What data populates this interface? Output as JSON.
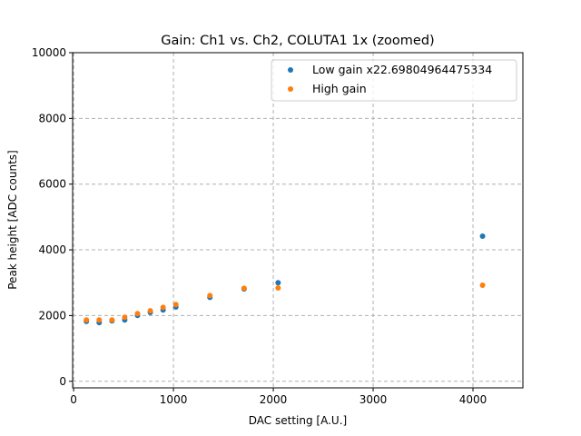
{
  "chart_data": {
    "type": "scatter",
    "title": "Gain: Ch1 vs. Ch2, COLUTA1 1x (zoomed)",
    "xlabel": "DAC setting [A.U.]",
    "ylabel": "Peak height [ADC counts]",
    "xlim": [
      -10,
      4500
    ],
    "ylim": [
      -200,
      10000
    ],
    "xticks": [
      0,
      1000,
      2000,
      3000,
      4000
    ],
    "yticks": [
      0,
      2000,
      4000,
      6000,
      8000,
      10000
    ],
    "grid": true,
    "legend_position": "top-right",
    "series": [
      {
        "name": "Low gain x22.69804964475334",
        "color": "#1f77b4",
        "x": [
          128,
          256,
          384,
          512,
          640,
          768,
          896,
          1024,
          1365,
          1707,
          2048,
          4096
        ],
        "y": [
          1820,
          1785,
          1840,
          1865,
          2005,
          2095,
          2170,
          2260,
          2555,
          2810,
          3000,
          4415
        ]
      },
      {
        "name": "High gain",
        "color": "#ff7f0e",
        "x": [
          128,
          256,
          384,
          512,
          640,
          768,
          896,
          1024,
          1365,
          1707,
          2048,
          4096
        ],
        "y": [
          1865,
          1865,
          1865,
          1950,
          2060,
          2145,
          2250,
          2335,
          2610,
          2830,
          2840,
          2925
        ]
      }
    ]
  }
}
